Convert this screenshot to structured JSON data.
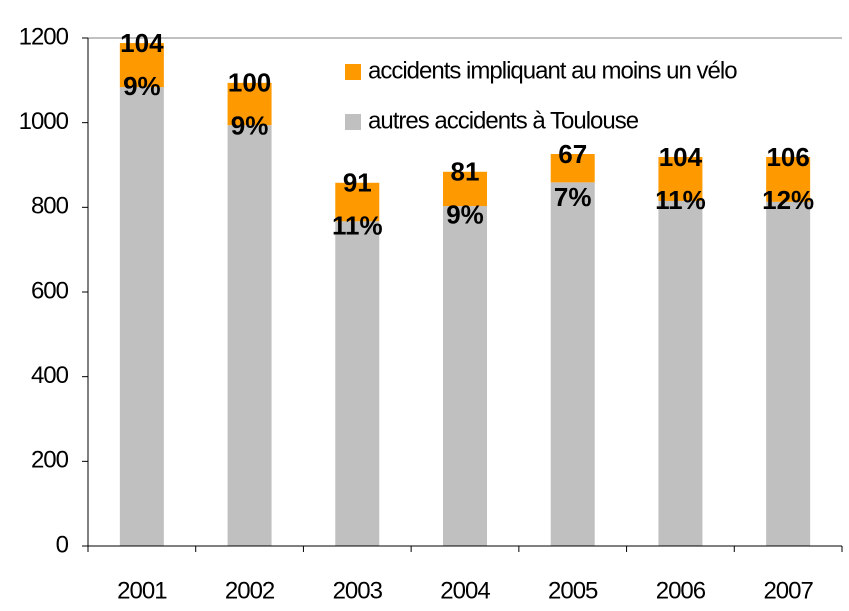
{
  "chart_data": {
    "type": "stacked_bar",
    "categories": [
      "2001",
      "2002",
      "2003",
      "2004",
      "2005",
      "2006",
      "2007"
    ],
    "series": [
      {
        "name": "autres accidents à Toulouse",
        "color": "#c0c0c0",
        "values": [
          1084,
          994,
          767,
          803,
          859,
          815,
          813
        ]
      },
      {
        "name": "accidents impliquant au moins un vélo",
        "color": "#ff9900",
        "values": [
          104,
          100,
          91,
          81,
          67,
          104,
          106
        ]
      }
    ],
    "share_labels": [
      "9%",
      "9%",
      "11%",
      "9%",
      "7%",
      "11%",
      "12%"
    ],
    "ylim": [
      0,
      1200
    ],
    "yticks": [
      0,
      200,
      400,
      600,
      800,
      1000,
      1200
    ],
    "legend": "top-right"
  }
}
